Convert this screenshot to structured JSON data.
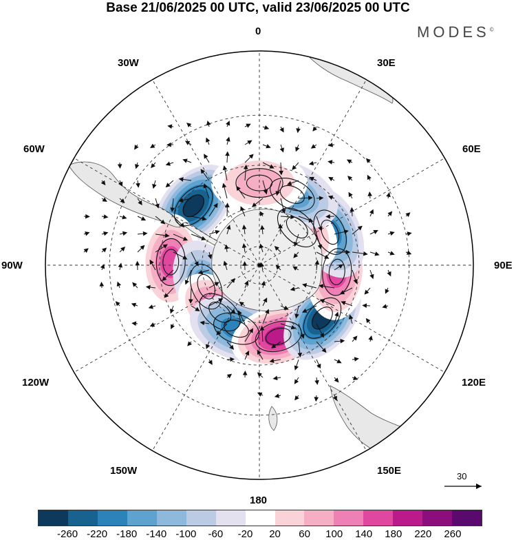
{
  "title": "Base 21/06/2025 00 UTC, valid 23/06/2025 00 UTC",
  "brand": {
    "text": "MODES",
    "mark": "©"
  },
  "longitude_labels": [
    "0",
    "30E",
    "60E",
    "90E",
    "120E",
    "150E",
    "180",
    "150W",
    "120W",
    "90W",
    "60W",
    "30W"
  ],
  "wind_reference": {
    "value": "30",
    "icon": "arrow-right-icon"
  },
  "colorbar": {
    "colors": [
      "#0d3a5c",
      "#17628f",
      "#2b83ba",
      "#5ea3cf",
      "#8fb9dc",
      "#bccbe4",
      "#e3e1f0",
      "#ffffff",
      "#f9d3d8",
      "#f5aec3",
      "#ef80b5",
      "#e0479f",
      "#bb1a8b",
      "#8c0d7c",
      "#5a0a6e"
    ],
    "tick_labels": [
      "-260",
      "-220",
      "-180",
      "-140",
      "-100",
      "-60",
      "-20",
      "20",
      "60",
      "100",
      "140",
      "180",
      "220",
      "260"
    ]
  },
  "anomaly_centres": [
    {
      "lon": -48,
      "lat": -45,
      "value": -240
    },
    {
      "lon": -88,
      "lat": -45,
      "value": 170
    },
    {
      "lon": -112,
      "lat": -60,
      "value": -120
    },
    {
      "lon": -140,
      "lat": -58,
      "value": 160
    },
    {
      "lon": -160,
      "lat": -55,
      "value": -180
    },
    {
      "lon": 165,
      "lat": -52,
      "value": 220
    },
    {
      "lon": 130,
      "lat": -48,
      "value": -260
    },
    {
      "lon": 95,
      "lat": -50,
      "value": 170
    },
    {
      "lon": 65,
      "lat": -50,
      "value": -160
    },
    {
      "lon": 45,
      "lat": -62,
      "value": 150
    },
    {
      "lon": 25,
      "lat": -50,
      "value": -130
    },
    {
      "lon": 0,
      "lat": -48,
      "value": 110
    }
  ]
}
